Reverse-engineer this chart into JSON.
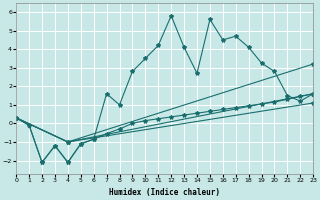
{
  "xlabel": "Humidex (Indice chaleur)",
  "xlim": [
    0,
    23
  ],
  "ylim": [
    -2.7,
    6.5
  ],
  "xticks": [
    0,
    1,
    2,
    3,
    4,
    5,
    6,
    7,
    8,
    9,
    10,
    11,
    12,
    13,
    14,
    15,
    16,
    17,
    18,
    19,
    20,
    21,
    22,
    23
  ],
  "yticks": [
    -2,
    -1,
    0,
    1,
    2,
    3,
    4,
    5,
    6
  ],
  "bg_color": "#c8e8e8",
  "grid_color": "#ffffff",
  "line_color": "#1a6e6e",
  "jagged_x": [
    0,
    1,
    2,
    3,
    4,
    5,
    6,
    7,
    8,
    9,
    10,
    11,
    12,
    13,
    14,
    15,
    16,
    17,
    18,
    19,
    20,
    21,
    22,
    23
  ],
  "jagged_y": [
    0.3,
    -0.1,
    -2.1,
    -1.2,
    -2.1,
    -1.1,
    -0.85,
    1.6,
    1.0,
    2.8,
    3.5,
    4.2,
    5.8,
    4.1,
    2.7,
    5.6,
    4.5,
    4.7,
    4.1,
    3.25,
    2.8,
    1.5,
    1.2,
    1.6
  ],
  "curve_x": [
    0,
    1,
    2,
    3,
    4,
    5,
    6,
    7,
    8,
    9,
    10,
    11,
    12,
    13,
    14,
    15,
    16,
    17,
    18,
    19,
    20,
    21,
    22,
    23
  ],
  "curve_y": [
    0.3,
    -0.1,
    -2.1,
    -1.2,
    -2.1,
    -1.1,
    -0.85,
    -0.55,
    -0.3,
    0.0,
    0.15,
    0.25,
    0.35,
    0.45,
    0.55,
    0.65,
    0.75,
    0.85,
    0.95,
    1.05,
    1.15,
    1.3,
    1.45,
    1.6
  ],
  "trend1_x": [
    0,
    4,
    23
  ],
  "trend1_y": [
    0.3,
    -1.0,
    3.2
  ],
  "trend2_x": [
    0,
    4,
    23
  ],
  "trend2_y": [
    0.3,
    -1.0,
    1.6
  ],
  "trend3_x": [
    0,
    4,
    23
  ],
  "trend3_y": [
    0.3,
    -1.0,
    1.1
  ]
}
